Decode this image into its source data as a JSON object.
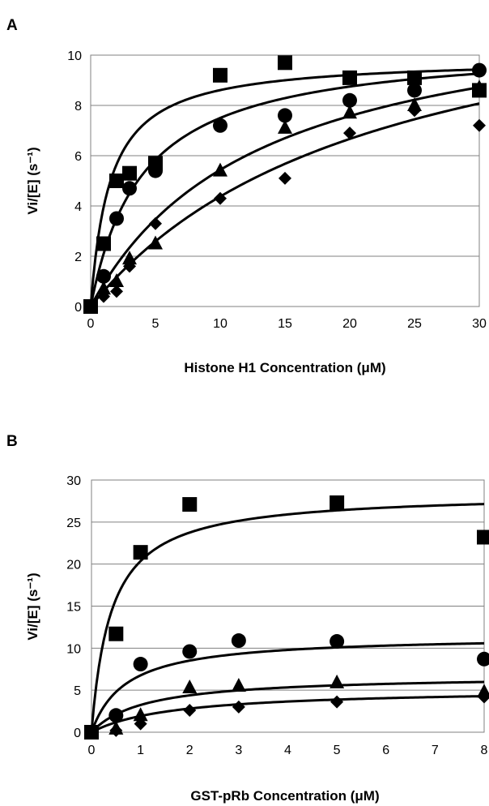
{
  "chart_data": [
    {
      "type": "scatter",
      "panel_label": "A",
      "xlabel": "Histone H1 Concentration (μM)",
      "ylabel": "Vi/[E] (s⁻¹)",
      "xlim": [
        0,
        30
      ],
      "ylim": [
        0,
        10
      ],
      "xticks": [
        0,
        5,
        10,
        15,
        20,
        25,
        30
      ],
      "yticks": [
        0,
        2,
        4,
        6,
        8,
        10
      ],
      "grid": "horizontal",
      "series": [
        {
          "marker": "square",
          "points": [
            [
              0,
              0
            ],
            [
              1,
              2.5
            ],
            [
              2,
              5
            ],
            [
              3,
              5.3
            ],
            [
              5,
              5.7
            ],
            [
              10,
              9.2
            ],
            [
              15,
              9.7
            ],
            [
              20,
              9.1
            ],
            [
              25,
              9.1
            ],
            [
              30,
              8.6
            ]
          ],
          "fit": {
            "vmax": 9.9,
            "km": 1.5
          }
        },
        {
          "marker": "circle",
          "points": [
            [
              0,
              0
            ],
            [
              1,
              1.2
            ],
            [
              2,
              3.5
            ],
            [
              3,
              4.7
            ],
            [
              5,
              5.4
            ],
            [
              10,
              7.2
            ],
            [
              15,
              7.6
            ],
            [
              20,
              8.2
            ],
            [
              25,
              8.6
            ],
            [
              30,
              9.4
            ]
          ],
          "fit": {
            "vmax": 10.5,
            "km": 4
          }
        },
        {
          "marker": "triangle",
          "points": [
            [
              0,
              0
            ],
            [
              1,
              0.7
            ],
            [
              2,
              1.0
            ],
            [
              3,
              1.9
            ],
            [
              5,
              2.5
            ],
            [
              10,
              5.4
            ],
            [
              15,
              7.1
            ],
            [
              20,
              7.7
            ],
            [
              25,
              8.0
            ],
            [
              30,
              8.7
            ]
          ],
          "fit": {
            "vmax": 12.5,
            "km": 13
          }
        },
        {
          "marker": "diamond",
          "points": [
            [
              0,
              0
            ],
            [
              1,
              0.4
            ],
            [
              2,
              0.6
            ],
            [
              3,
              1.6
            ],
            [
              5,
              3.3
            ],
            [
              10,
              4.3
            ],
            [
              15,
              5.1
            ],
            [
              20,
              6.9
            ],
            [
              25,
              7.8
            ],
            [
              30,
              7.2
            ]
          ],
          "fit": {
            "vmax": 14,
            "km": 22
          }
        }
      ]
    },
    {
      "type": "scatter",
      "panel_label": "B",
      "xlabel": "GST-pRb Concentration (μM)",
      "ylabel": "Vi/[E] (s⁻¹)",
      "xlim": [
        0,
        8
      ],
      "ylim": [
        0,
        30
      ],
      "xticks": [
        0,
        1,
        2,
        3,
        4,
        5,
        6,
        7,
        8
      ],
      "yticks": [
        0,
        5,
        10,
        15,
        20,
        25,
        30
      ],
      "grid": "horizontal",
      "series": [
        {
          "marker": "square",
          "points": [
            [
              0,
              0
            ],
            [
              0.5,
              11.7
            ],
            [
              1,
              21.4
            ],
            [
              2,
              27.1
            ],
            [
              5,
              27.3
            ],
            [
              8,
              23.2
            ]
          ],
          "fit": {
            "vmax": 28.5,
            "km": 0.4
          }
        },
        {
          "marker": "circle",
          "points": [
            [
              0,
              0
            ],
            [
              0.5,
              2.0
            ],
            [
              1,
              8.1
            ],
            [
              2,
              9.6
            ],
            [
              3,
              10.9
            ],
            [
              5,
              10.8
            ],
            [
              8,
              8.7
            ]
          ],
          "fit": {
            "vmax": 11.5,
            "km": 0.7
          }
        },
        {
          "marker": "triangle",
          "points": [
            [
              0,
              0
            ],
            [
              0.5,
              0.4
            ],
            [
              1,
              2.0
            ],
            [
              2,
              5.3
            ],
            [
              3,
              5.5
            ],
            [
              5,
              5.9
            ],
            [
              8,
              4.8
            ]
          ],
          "fit": {
            "vmax": 6.8,
            "km": 1.1
          }
        },
        {
          "marker": "diamond",
          "points": [
            [
              0,
              0
            ],
            [
              0.5,
              0.2
            ],
            [
              1,
              1.0
            ],
            [
              2,
              2.6
            ],
            [
              3,
              3.0
            ],
            [
              5,
              3.6
            ],
            [
              8,
              4.2
            ]
          ],
          "fit": {
            "vmax": 5.2,
            "km": 1.7
          }
        }
      ]
    }
  ]
}
